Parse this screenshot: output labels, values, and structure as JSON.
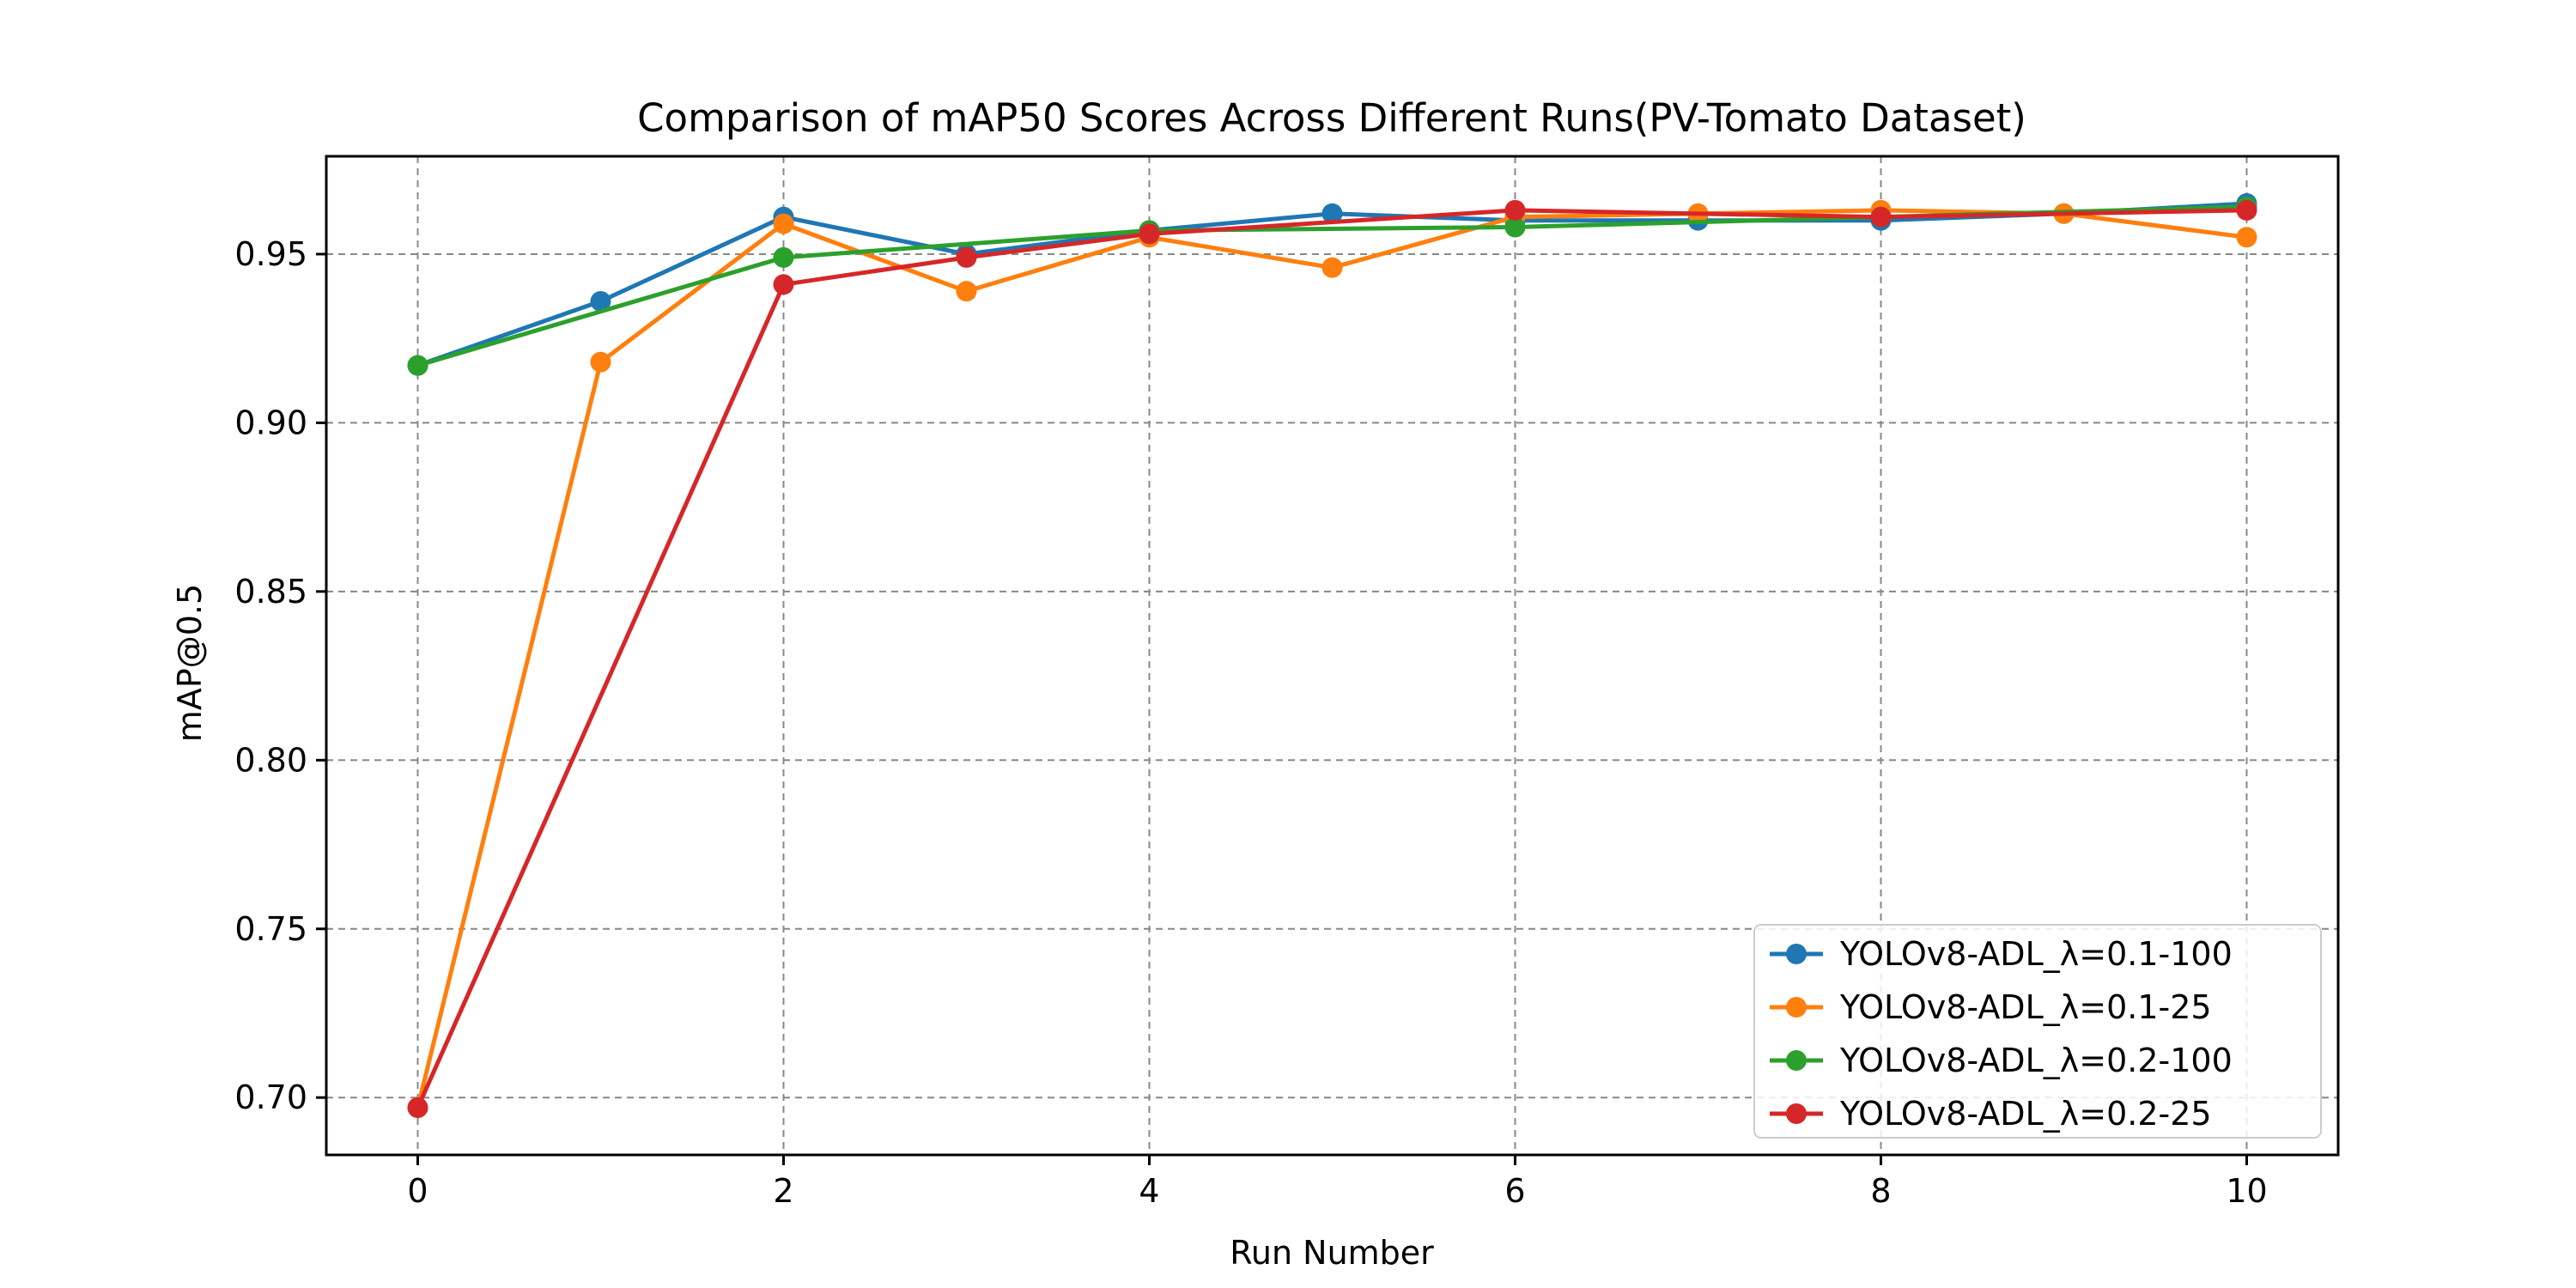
{
  "chart_data": {
    "type": "line",
    "title": "Comparison of mAP50 Scores Across Different Runs(PV-Tomato Dataset)",
    "xlabel": "Run Number",
    "ylabel": "mAP@0.5",
    "xlim": [
      -0.5,
      10.5
    ],
    "ylim": [
      0.683,
      0.979
    ],
    "xticks": [
      0,
      2,
      4,
      6,
      8,
      10
    ],
    "xtick_labels": [
      "0",
      "2",
      "4",
      "6",
      "8",
      "10"
    ],
    "yticks": [
      0.7,
      0.75,
      0.8,
      0.85,
      0.9,
      0.95
    ],
    "ytick_labels": [
      "0.70",
      "0.75",
      "0.80",
      "0.85",
      "0.90",
      "0.95"
    ],
    "grid": true,
    "grid_style": "dashed",
    "legend_position": "lower-right",
    "marker": "circle",
    "series": [
      {
        "name": "YOLOv8-ADL_λ=0.1-100",
        "color": "#1f77b4",
        "points": [
          [
            0,
            0.917
          ],
          [
            1,
            0.936
          ],
          [
            2,
            0.961
          ],
          [
            3,
            0.95
          ],
          [
            4,
            0.957
          ],
          [
            5,
            0.962
          ],
          [
            6,
            0.96
          ],
          [
            7,
            0.96
          ],
          [
            8,
            0.96
          ],
          [
            9,
            0.962
          ],
          [
            10,
            0.965
          ]
        ]
      },
      {
        "name": "YOLOv8-ADL_λ=0.1-25",
        "color": "#ff7f0e",
        "points": [
          [
            0,
            0.697
          ],
          [
            1,
            0.918
          ],
          [
            2,
            0.959
          ],
          [
            3,
            0.939
          ],
          [
            4,
            0.955
          ],
          [
            5,
            0.946
          ],
          [
            6,
            0.961
          ],
          [
            7,
            0.962
          ],
          [
            8,
            0.963
          ],
          [
            9,
            0.962
          ],
          [
            10,
            0.955
          ]
        ]
      },
      {
        "name": "YOLOv8-ADL_λ=0.2-100",
        "color": "#2ca02c",
        "points": [
          [
            0,
            0.917
          ],
          [
            2,
            0.949
          ],
          [
            4,
            0.957
          ],
          [
            6,
            0.958
          ],
          [
            8,
            0.961
          ],
          [
            10,
            0.964
          ]
        ]
      },
      {
        "name": "YOLOv8-ADL_λ=0.2-25",
        "color": "#d62728",
        "points": [
          [
            0,
            0.697
          ],
          [
            2,
            0.941
          ],
          [
            3,
            0.949
          ],
          [
            4,
            0.956
          ],
          [
            6,
            0.963
          ],
          [
            8,
            0.961
          ],
          [
            10,
            0.963
          ]
        ]
      }
    ]
  }
}
